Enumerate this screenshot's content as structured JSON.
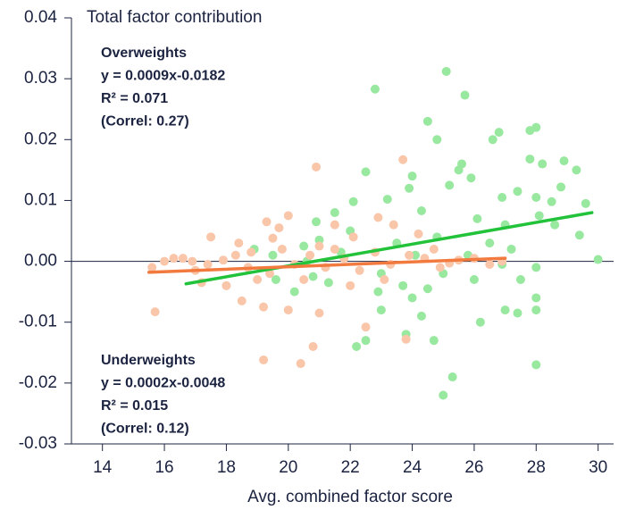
{
  "chart_data": {
    "type": "scatter",
    "x_label": "Avg. combined factor score",
    "y_label": "Total factor contribution",
    "xlim": [
      13,
      30.5
    ],
    "xticks": [
      14,
      16,
      18,
      20,
      22,
      24,
      26,
      28,
      30
    ],
    "ylim": [
      -0.03,
      0.04
    ],
    "yticks": [
      0.04,
      0.03,
      0.02,
      0.01,
      {
        "value": 0,
        "label": "0.00"
      },
      -0.01,
      -0.02,
      -0.03
    ],
    "series": [
      {
        "color": "#98e89f",
        "x": [
          22.8,
          25.1,
          25.7,
          24.5,
          24.8,
          26.6,
          26.8,
          28.0,
          27.8,
          27.8,
          28.2,
          28.9,
          25.6,
          25.5,
          25.9,
          24.0,
          22.5,
          23.9,
          25.2,
          26.9,
          27.4,
          28.0,
          28.5,
          29.3,
          29.6,
          28.8,
          22.1,
          23.2,
          21.5,
          20.9,
          24.3,
          26.1,
          27.0,
          28.1,
          29.4,
          30.0,
          28.0,
          27.5,
          26.0,
          25.0,
          24.5,
          23.7,
          23.0,
          22.5,
          22.2,
          24.3,
          24.7,
          25.0,
          25.3,
          26.2,
          27.0,
          27.4,
          28.0,
          28.0,
          28.0,
          19.6,
          20.2,
          20.8,
          19.5,
          18.9,
          20.5,
          21.0,
          22.0,
          23.5,
          24.8,
          26.5,
          27.2,
          28.6,
          20.6,
          21.7,
          23.0,
          25.8,
          24.1,
          26.9,
          23.8,
          24.0,
          22.9,
          21.3
        ],
        "values": [
          0.0283,
          0.0312,
          0.0273,
          0.023,
          0.02,
          0.02,
          0.0212,
          0.022,
          0.0215,
          0.0168,
          0.016,
          0.0165,
          0.016,
          0.015,
          0.0137,
          0.014,
          0.0147,
          0.012,
          0.0125,
          0.0105,
          0.0115,
          0.0105,
          0.0098,
          0.015,
          0.0095,
          0.0122,
          0.0098,
          0.0102,
          0.008,
          0.0065,
          0.0083,
          0.007,
          0.006,
          0.0075,
          0.0043,
          0.0003,
          -0.001,
          -0.003,
          -0.003,
          -0.002,
          -0.0045,
          -0.004,
          -0.008,
          -0.013,
          -0.014,
          -0.009,
          -0.013,
          -0.022,
          -0.019,
          -0.01,
          -0.008,
          -0.0085,
          -0.006,
          -0.008,
          -0.017,
          -0.003,
          -0.005,
          -0.0025,
          0.001,
          0.002,
          0.0025,
          0.0035,
          0.005,
          0.003,
          0.004,
          0.003,
          0.002,
          0.006,
          0.0,
          0.0015,
          -0.002,
          0.001,
          0.001,
          -0.0005,
          -0.012,
          -0.006,
          -0.005,
          -0.0035
        ]
      },
      {
        "color": "#f9c6aa",
        "x": [
          20.9,
          23.7,
          15.7,
          19.2,
          20.4,
          20.8,
          23.8,
          22.5,
          21.0,
          20.0,
          19.2,
          18.5,
          19.0,
          18.0,
          17.2,
          19.3,
          20.0,
          19.7,
          19.5,
          18.4,
          17.5,
          21.5,
          22.9,
          23.4,
          24.2,
          22.1,
          21.0,
          15.6,
          16.0,
          16.3,
          16.9,
          17.4,
          17.9,
          18.3,
          18.7,
          19.4,
          20.2,
          20.7,
          21.2,
          21.8,
          22.3,
          22.8,
          23.3,
          23.9,
          24.4,
          24.9,
          25.5,
          26.0,
          26.5,
          26.9,
          22.0,
          23.1,
          20.5,
          17.0,
          16.6,
          18.8,
          24.7,
          25.2,
          21.5,
          19.8
        ],
        "values": [
          0.0155,
          0.0167,
          -0.0083,
          -0.0162,
          -0.0168,
          -0.014,
          -0.0128,
          -0.0108,
          -0.0085,
          -0.008,
          -0.0075,
          -0.0065,
          -0.003,
          -0.004,
          -0.0035,
          0.0065,
          0.0075,
          0.0055,
          0.0038,
          0.003,
          0.004,
          0.006,
          0.0072,
          0.006,
          0.0045,
          0.004,
          0.0025,
          -0.001,
          0.0,
          0.0005,
          0.0,
          -0.0005,
          0.0002,
          0.001,
          -0.001,
          -0.002,
          -0.0005,
          0.001,
          -0.001,
          0.0005,
          -0.0015,
          0.0015,
          -0.0005,
          0.001,
          0.0005,
          -0.001,
          0.0002,
          0.0005,
          -0.0005,
          0.0,
          -0.004,
          -0.003,
          -0.003,
          -0.0015,
          0.0005,
          0.0015,
          0.002,
          -0.0003,
          0.002,
          0.002
        ]
      }
    ],
    "trendlines": [
      {
        "color": "#22c23a",
        "x": [
          16.7,
          29.8
        ],
        "values": [
          -0.0037,
          0.008
        ]
      },
      {
        "color": "#f27a3e",
        "x": [
          15.5,
          27.0
        ],
        "values": [
          -0.0018,
          0.0005
        ]
      }
    ],
    "annotations": [
      [
        "Overweights",
        "y = 0.0009x-0.0182",
        "R² = 0.071",
        "(Correl: 0.27)"
      ],
      [
        "Underweights",
        "y = 0.0002x-0.0048",
        "R² = 0.015",
        "(Correl: 0.12)"
      ]
    ]
  }
}
